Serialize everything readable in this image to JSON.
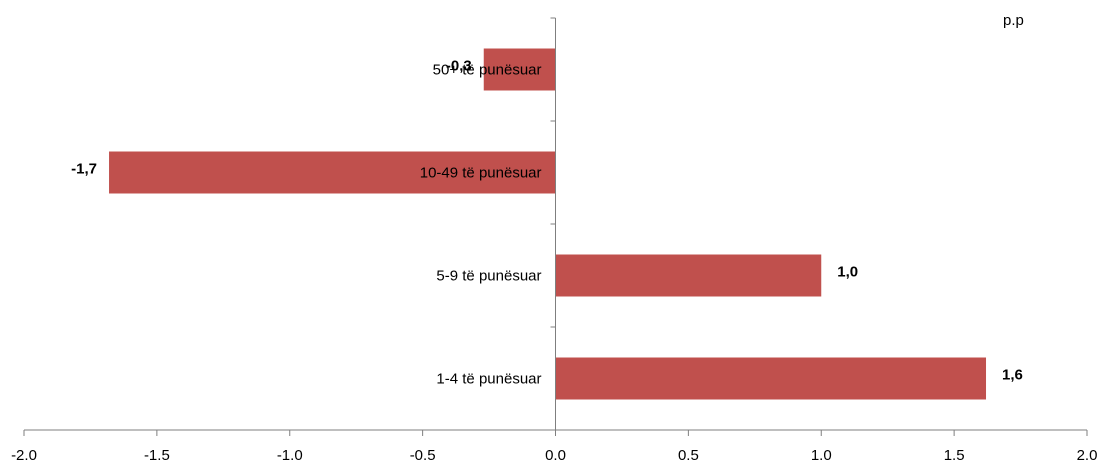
{
  "chart_data": {
    "type": "bar",
    "orientation": "horizontal",
    "unit": "p.p",
    "categories": [
      "50+ të punësuar",
      "10-49 të punësuar",
      "5-9 të punësuar",
      "1-4 të punësuar"
    ],
    "values": [
      -0.27,
      -1.68,
      1.0,
      1.62
    ],
    "data_labels": [
      "-0,3",
      "-1,7",
      "1,0",
      "1,6"
    ],
    "xlim": [
      -2.0,
      2.0
    ],
    "x_ticks": [
      -2.0,
      -1.5,
      -1.0,
      -0.5,
      0.0,
      0.5,
      1.0,
      1.5,
      2.0
    ],
    "x_tick_labels": [
      "-2.0",
      "-1.5",
      "-1.0",
      "-0.5",
      "0.0",
      "0.5",
      "1.0",
      "1.5",
      "2.0"
    ],
    "title": "",
    "xlabel": "",
    "ylabel": "",
    "grid": false,
    "bar_color": "#C0504D"
  }
}
